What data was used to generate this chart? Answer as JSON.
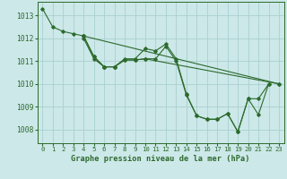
{
  "title": "Graphe pression niveau de la mer (hPa)",
  "background_color": "#cce8e8",
  "grid_color": "#aacfcf",
  "line_color": "#2d6a2d",
  "xlim": [
    -0.5,
    23.5
  ],
  "ylim": [
    1007.4,
    1013.6
  ],
  "yticks": [
    1008,
    1009,
    1010,
    1011,
    1012,
    1013
  ],
  "xticks": [
    0,
    1,
    2,
    3,
    4,
    5,
    6,
    7,
    8,
    9,
    10,
    11,
    12,
    13,
    14,
    15,
    16,
    17,
    18,
    19,
    20,
    21,
    22,
    23
  ],
  "multi_lines": [
    {
      "points": [
        [
          0,
          1013.3
        ],
        [
          1,
          1012.5
        ],
        [
          2,
          1012.3
        ],
        [
          3,
          1012.2
        ],
        [
          4,
          1012.1
        ],
        [
          5,
          1011.2
        ],
        [
          6,
          1010.75
        ],
        [
          7,
          1010.75
        ],
        [
          8,
          1011.1
        ],
        [
          9,
          1011.1
        ],
        [
          10,
          1011.55
        ],
        [
          11,
          1011.45
        ],
        [
          12,
          1011.75
        ],
        [
          13,
          1011.1
        ],
        [
          14,
          1009.55
        ],
        [
          15,
          1008.6
        ],
        [
          16,
          1008.45
        ],
        [
          17,
          1008.45
        ],
        [
          18,
          1008.7
        ],
        [
          19,
          1007.9
        ],
        [
          20,
          1009.35
        ],
        [
          21,
          1008.65
        ],
        [
          22,
          1010.0
        ]
      ]
    },
    {
      "points": [
        [
          4,
          1012.1
        ],
        [
          23,
          1010.0
        ]
      ]
    },
    {
      "points": [
        [
          4,
          1012.1
        ],
        [
          5,
          1011.2
        ],
        [
          6,
          1010.75
        ],
        [
          7,
          1010.75
        ],
        [
          8,
          1011.05
        ],
        [
          9,
          1011.05
        ],
        [
          10,
          1011.1
        ],
        [
          23,
          1010.0
        ]
      ]
    },
    {
      "points": [
        [
          4,
          1012.0
        ],
        [
          5,
          1011.1
        ],
        [
          6,
          1010.75
        ],
        [
          7,
          1010.75
        ],
        [
          8,
          1011.05
        ],
        [
          9,
          1011.05
        ],
        [
          10,
          1011.1
        ],
        [
          11,
          1011.1
        ],
        [
          12,
          1011.65
        ],
        [
          13,
          1011.0
        ],
        [
          14,
          1009.5
        ],
        [
          15,
          1008.6
        ],
        [
          16,
          1008.45
        ],
        [
          17,
          1008.45
        ],
        [
          18,
          1008.7
        ],
        [
          19,
          1007.9
        ],
        [
          20,
          1009.35
        ],
        [
          21,
          1009.35
        ],
        [
          22,
          1010.0
        ]
      ]
    }
  ]
}
